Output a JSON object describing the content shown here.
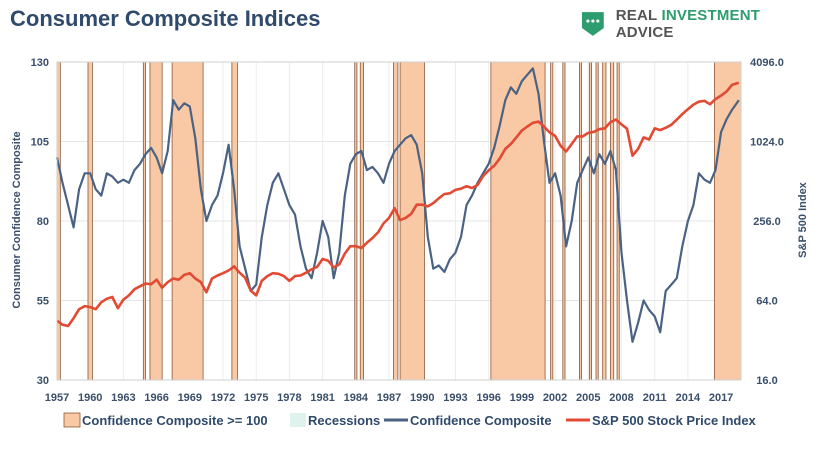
{
  "title": "Consumer Composite Indices",
  "brand": {
    "prefix": "REAL ",
    "accent": "INVESTMENT",
    "suffix": " ADVICE",
    "icon": "chart-logo-icon"
  },
  "colors": {
    "shade": "#f8c9a4",
    "shade_edge": "#8a5a3c",
    "recession": "#dff3ee",
    "confidence": "#4a6283",
    "sp500": "#e24a33",
    "text": "#2f4a6b"
  },
  "chart_data": {
    "type": "line",
    "xlabel": "",
    "ylabel": "Consumer Confidence Composite",
    "y2label": "S&P 500 Index",
    "xlim": [
      1957,
      2018.8
    ],
    "ylim": [
      30,
      130
    ],
    "y2lim_log2": [
      4,
      12
    ],
    "yticks": [
      "30",
      "55",
      "80",
      "105",
      "130"
    ],
    "y2ticks": [
      "16.0",
      "64.0",
      "256.0",
      "1024.0",
      "4096.0"
    ],
    "xticks": [
      "1957",
      "1960",
      "1963",
      "1966",
      "1969",
      "1972",
      "1975",
      "1978",
      "1981",
      "1984",
      "1987",
      "1990",
      "1993",
      "1996",
      "1999",
      "2002",
      "2005",
      "2008",
      "2011",
      "2014",
      "2017"
    ],
    "shaded_periods": [
      [
        1957.0,
        1957.3
      ],
      [
        1959.8,
        1960.2
      ],
      [
        1964.8,
        1965.0
      ],
      [
        1965.4,
        1966.5
      ],
      [
        1967.4,
        1970.2
      ],
      [
        1972.8,
        1973.3
      ],
      [
        1983.9,
        1984.1
      ],
      [
        1984.4,
        1984.7
      ],
      [
        1987.4,
        1987.8
      ],
      [
        1988.0,
        1990.2
      ],
      [
        1996.2,
        2001.1
      ],
      [
        2001.6,
        2001.8
      ],
      [
        2002.7,
        2002.9
      ],
      [
        2004.2,
        2004.4
      ],
      [
        2005.1,
        2005.3
      ],
      [
        2005.7,
        2005.9
      ],
      [
        2006.3,
        2006.6
      ],
      [
        2007.0,
        2007.3
      ],
      [
        2007.6,
        2007.8
      ],
      [
        2016.4,
        2018.8
      ]
    ],
    "series": [
      {
        "name": "Confidence Composite",
        "points": [
          [
            1957,
            100
          ],
          [
            1957.5,
            92
          ],
          [
            1958,
            85
          ],
          [
            1958.5,
            78
          ],
          [
            1959,
            90
          ],
          [
            1959.5,
            95
          ],
          [
            1960,
            95
          ],
          [
            1960.5,
            90
          ],
          [
            1961,
            88
          ],
          [
            1961.5,
            95
          ],
          [
            1962,
            94
          ],
          [
            1962.5,
            92
          ],
          [
            1963,
            93
          ],
          [
            1963.5,
            92
          ],
          [
            1964,
            96
          ],
          [
            1964.5,
            98
          ],
          [
            1965,
            101
          ],
          [
            1965.5,
            103
          ],
          [
            1966,
            100
          ],
          [
            1966.5,
            95
          ],
          [
            1967,
            102
          ],
          [
            1967.5,
            118
          ],
          [
            1968,
            115
          ],
          [
            1968.5,
            117
          ],
          [
            1969,
            116
          ],
          [
            1969.5,
            106
          ],
          [
            1970,
            90
          ],
          [
            1970.5,
            80
          ],
          [
            1971,
            85
          ],
          [
            1971.5,
            88
          ],
          [
            1972,
            95
          ],
          [
            1972.5,
            104
          ],
          [
            1973,
            90
          ],
          [
            1973.5,
            72
          ],
          [
            1974,
            65
          ],
          [
            1974.5,
            58
          ],
          [
            1975,
            60
          ],
          [
            1975.5,
            75
          ],
          [
            1976,
            85
          ],
          [
            1976.5,
            92
          ],
          [
            1977,
            95
          ],
          [
            1977.5,
            90
          ],
          [
            1978,
            85
          ],
          [
            1978.5,
            82
          ],
          [
            1979,
            72
          ],
          [
            1979.5,
            65
          ],
          [
            1980,
            62
          ],
          [
            1980.5,
            70
          ],
          [
            1981,
            80
          ],
          [
            1981.5,
            75
          ],
          [
            1982,
            62
          ],
          [
            1982.5,
            70
          ],
          [
            1983,
            88
          ],
          [
            1983.5,
            98
          ],
          [
            1984,
            101
          ],
          [
            1984.5,
            102
          ],
          [
            1985,
            96
          ],
          [
            1985.5,
            97
          ],
          [
            1986,
            95
          ],
          [
            1986.5,
            92
          ],
          [
            1987,
            98
          ],
          [
            1987.5,
            102
          ],
          [
            1988,
            104
          ],
          [
            1988.5,
            106
          ],
          [
            1989,
            107
          ],
          [
            1989.5,
            104
          ],
          [
            1990,
            95
          ],
          [
            1990.5,
            75
          ],
          [
            1991,
            65
          ],
          [
            1991.5,
            66
          ],
          [
            1992,
            64
          ],
          [
            1992.5,
            68
          ],
          [
            1993,
            70
          ],
          [
            1993.5,
            75
          ],
          [
            1994,
            85
          ],
          [
            1994.5,
            88
          ],
          [
            1995,
            92
          ],
          [
            1995.5,
            95
          ],
          [
            1996,
            98
          ],
          [
            1996.5,
            103
          ],
          [
            1997,
            110
          ],
          [
            1997.5,
            118
          ],
          [
            1998,
            122
          ],
          [
            1998.5,
            120
          ],
          [
            1999,
            124
          ],
          [
            1999.5,
            126
          ],
          [
            2000,
            128
          ],
          [
            2000.5,
            120
          ],
          [
            2001,
            105
          ],
          [
            2001.5,
            92
          ],
          [
            2002,
            95
          ],
          [
            2002.5,
            88
          ],
          [
            2003,
            72
          ],
          [
            2003.5,
            80
          ],
          [
            2004,
            92
          ],
          [
            2004.5,
            96
          ],
          [
            2005,
            100
          ],
          [
            2005.5,
            95
          ],
          [
            2006,
            101
          ],
          [
            2006.5,
            98
          ],
          [
            2007,
            102
          ],
          [
            2007.5,
            96
          ],
          [
            2008,
            70
          ],
          [
            2008.5,
            55
          ],
          [
            2009,
            42
          ],
          [
            2009.5,
            48
          ],
          [
            2010,
            55
          ],
          [
            2010.5,
            52
          ],
          [
            2011,
            50
          ],
          [
            2011.5,
            45
          ],
          [
            2012,
            58
          ],
          [
            2012.5,
            60
          ],
          [
            2013,
            62
          ],
          [
            2013.5,
            72
          ],
          [
            2014,
            80
          ],
          [
            2014.5,
            85
          ],
          [
            2015,
            95
          ],
          [
            2015.5,
            93
          ],
          [
            2016,
            92
          ],
          [
            2016.5,
            96
          ],
          [
            2017,
            108
          ],
          [
            2017.5,
            112
          ],
          [
            2018,
            115
          ],
          [
            2018.6,
            118
          ]
        ]
      },
      {
        "name": "S&P 500 Stock Price Index",
        "points": [
          [
            1957,
            45
          ],
          [
            1957.5,
            42
          ],
          [
            1958,
            41
          ],
          [
            1958.5,
            47
          ],
          [
            1959,
            55
          ],
          [
            1959.5,
            58
          ],
          [
            1960,
            57
          ],
          [
            1960.5,
            55
          ],
          [
            1961,
            62
          ],
          [
            1961.5,
            66
          ],
          [
            1962,
            68
          ],
          [
            1962.5,
            56
          ],
          [
            1963,
            65
          ],
          [
            1963.5,
            70
          ],
          [
            1964,
            78
          ],
          [
            1964.5,
            82
          ],
          [
            1965,
            86
          ],
          [
            1965.5,
            85
          ],
          [
            1966,
            92
          ],
          [
            1966.5,
            80
          ],
          [
            1967,
            88
          ],
          [
            1967.5,
            94
          ],
          [
            1968,
            92
          ],
          [
            1968.5,
            100
          ],
          [
            1969,
            103
          ],
          [
            1969.5,
            94
          ],
          [
            1970,
            88
          ],
          [
            1970.5,
            74
          ],
          [
            1971,
            94
          ],
          [
            1971.5,
            99
          ],
          [
            1972,
            103
          ],
          [
            1972.5,
            108
          ],
          [
            1973,
            116
          ],
          [
            1973.5,
            104
          ],
          [
            1974,
            95
          ],
          [
            1974.5,
            76
          ],
          [
            1975,
            70
          ],
          [
            1975.5,
            90
          ],
          [
            1976,
            98
          ],
          [
            1976.5,
            103
          ],
          [
            1977,
            102
          ],
          [
            1977.5,
            98
          ],
          [
            1978,
            90
          ],
          [
            1978.5,
            98
          ],
          [
            1979,
            99
          ],
          [
            1979.5,
            104
          ],
          [
            1980,
            110
          ],
          [
            1980.5,
            115
          ],
          [
            1981,
            132
          ],
          [
            1981.5,
            128
          ],
          [
            1982,
            114
          ],
          [
            1982.5,
            120
          ],
          [
            1983,
            145
          ],
          [
            1983.5,
            165
          ],
          [
            1984,
            165
          ],
          [
            1984.5,
            160
          ],
          [
            1985,
            175
          ],
          [
            1985.5,
            190
          ],
          [
            1986,
            210
          ],
          [
            1986.5,
            245
          ],
          [
            1987,
            270
          ],
          [
            1987.5,
            320
          ],
          [
            1988,
            260
          ],
          [
            1988.5,
            270
          ],
          [
            1989,
            290
          ],
          [
            1989.5,
            340
          ],
          [
            1990,
            340
          ],
          [
            1990.5,
            330
          ],
          [
            1991,
            350
          ],
          [
            1991.5,
            380
          ],
          [
            1992,
            410
          ],
          [
            1992.5,
            415
          ],
          [
            1993,
            440
          ],
          [
            1993.5,
            450
          ],
          [
            1994,
            470
          ],
          [
            1994.5,
            455
          ],
          [
            1995,
            480
          ],
          [
            1995.5,
            560
          ],
          [
            1996,
            620
          ],
          [
            1996.5,
            670
          ],
          [
            1997,
            760
          ],
          [
            1997.5,
            900
          ],
          [
            1998,
            980
          ],
          [
            1998.5,
            1100
          ],
          [
            1999,
            1240
          ],
          [
            1999.5,
            1330
          ],
          [
            2000,
            1420
          ],
          [
            2000.5,
            1450
          ],
          [
            2001,
            1330
          ],
          [
            2001.5,
            1200
          ],
          [
            2002,
            1130
          ],
          [
            2002.5,
            950
          ],
          [
            2003,
            860
          ],
          [
            2003.5,
            980
          ],
          [
            2004,
            1120
          ],
          [
            2004.5,
            1120
          ],
          [
            2005,
            1190
          ],
          [
            2005.5,
            1210
          ],
          [
            2006,
            1270
          ],
          [
            2006.5,
            1290
          ],
          [
            2007,
            1430
          ],
          [
            2007.5,
            1500
          ],
          [
            2008,
            1380
          ],
          [
            2008.5,
            1280
          ],
          [
            2009,
            800
          ],
          [
            2009.5,
            900
          ],
          [
            2010,
            1100
          ],
          [
            2010.5,
            1060
          ],
          [
            2011,
            1290
          ],
          [
            2011.5,
            1250
          ],
          [
            2012,
            1300
          ],
          [
            2012.5,
            1370
          ],
          [
            2013,
            1500
          ],
          [
            2013.5,
            1650
          ],
          [
            2014,
            1800
          ],
          [
            2014.5,
            1950
          ],
          [
            2015,
            2050
          ],
          [
            2015.5,
            2080
          ],
          [
            2016,
            1960
          ],
          [
            2016.5,
            2150
          ],
          [
            2017,
            2280
          ],
          [
            2017.5,
            2450
          ],
          [
            2018,
            2750
          ],
          [
            2018.6,
            2850
          ]
        ]
      }
    ],
    "legend": [
      "Confidence Composite >= 100",
      "Recessions",
      "Confidence Composite",
      "S&P 500 Stock Price Index"
    ],
    "legend_position": "bottom",
    "grid": true
  }
}
